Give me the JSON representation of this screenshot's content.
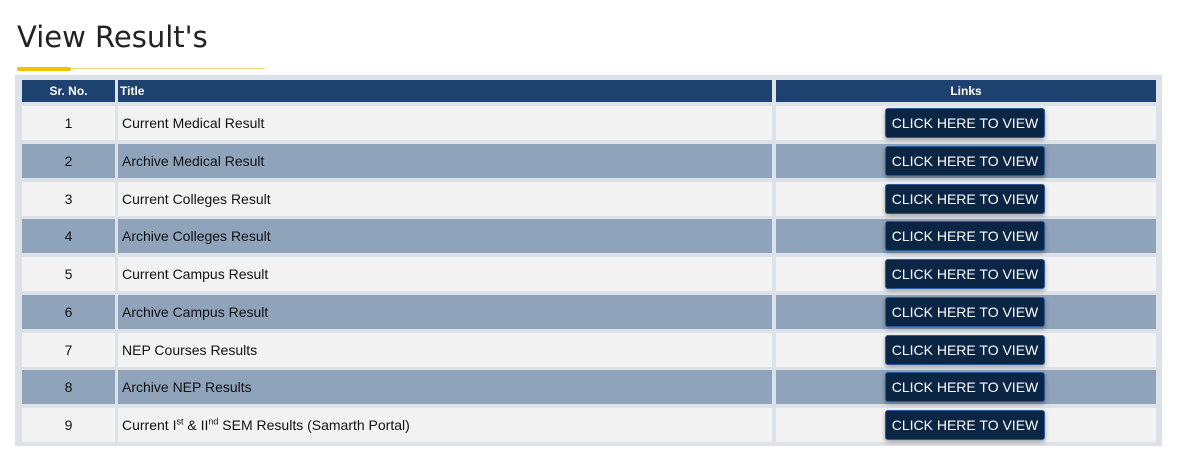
{
  "header": {
    "title": "View Result's"
  },
  "table": {
    "columns": [
      "Sr. No.",
      "Title",
      "Links"
    ],
    "rows": [
      {
        "sr": 1,
        "title": [
          {
            "text": "Current Medical Result"
          }
        ],
        "link": "CLICK HERE TO VIEW"
      },
      {
        "sr": 2,
        "title": [
          {
            "text": "Archive Medical Result"
          }
        ],
        "link": "CLICK HERE TO VIEW"
      },
      {
        "sr": 3,
        "title": [
          {
            "text": "Current Colleges Result"
          }
        ],
        "link": "CLICK HERE TO VIEW"
      },
      {
        "sr": 4,
        "title": [
          {
            "text": "Archive Colleges Result"
          }
        ],
        "link": "CLICK HERE TO VIEW"
      },
      {
        "sr": 5,
        "title": [
          {
            "text": "Current Campus Result"
          }
        ],
        "link": "CLICK HERE TO VIEW"
      },
      {
        "sr": 6,
        "title": [
          {
            "text": "Archive Campus Result"
          }
        ],
        "link": "CLICK HERE TO VIEW"
      },
      {
        "sr": 7,
        "title": [
          {
            "text": "NEP Courses Results"
          }
        ],
        "link": "CLICK HERE TO VIEW"
      },
      {
        "sr": 8,
        "title": [
          {
            "text": "Archive NEP Results"
          }
        ],
        "link": "CLICK HERE TO VIEW"
      },
      {
        "sr": 9,
        "title": [
          {
            "text": "Current I"
          },
          {
            "text": "st",
            "sup": true
          },
          {
            "text": " & II"
          },
          {
            "text": "nd",
            "sup": true
          },
          {
            "text": " SEM Results (Samarth Portal)"
          }
        ],
        "link": "CLICK HERE TO VIEW"
      }
    ]
  }
}
